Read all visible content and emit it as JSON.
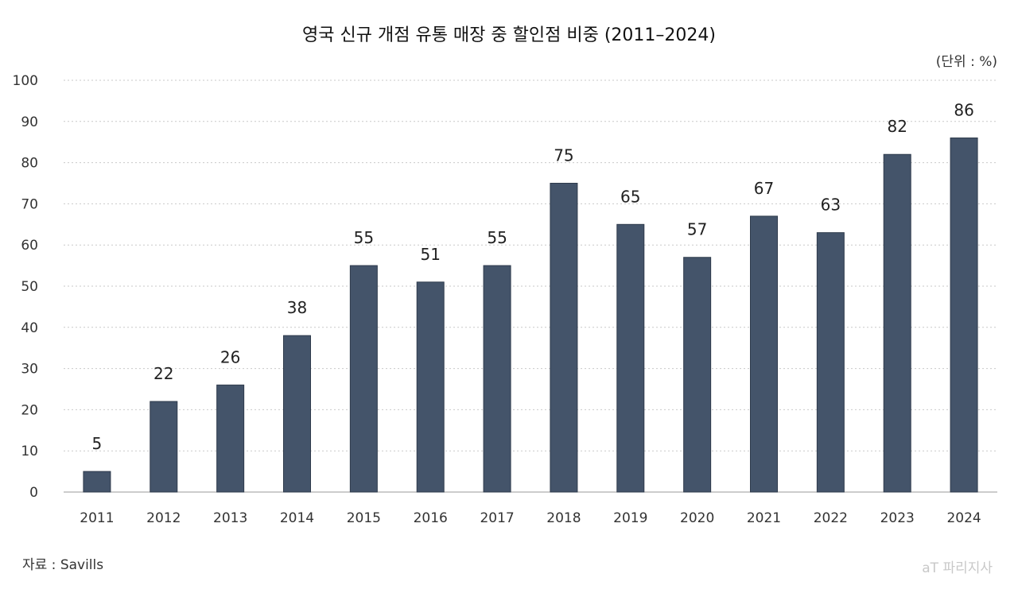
{
  "chart_data": {
    "type": "bar",
    "title": "영국 신규 개점 유통 매장 중 할인점 비중 (2011–2024)",
    "unit_label": "(단위 : %)",
    "categories": [
      "2011",
      "2012",
      "2013",
      "2014",
      "2015",
      "2016",
      "2017",
      "2018",
      "2019",
      "2020",
      "2021",
      "2022",
      "2023",
      "2024"
    ],
    "values": [
      5,
      22,
      26,
      38,
      55,
      51,
      55,
      75,
      65,
      57,
      67,
      63,
      82,
      86
    ],
    "yticks": [
      "0",
      "10",
      "20",
      "30",
      "40",
      "50",
      "60",
      "70",
      "80",
      "90",
      "100"
    ],
    "ylim": [
      0,
      100
    ],
    "grid": "dotted horizontal",
    "bar_color": "#44546a"
  },
  "source": "자료 : Savills",
  "watermark": "aT 파리지사"
}
